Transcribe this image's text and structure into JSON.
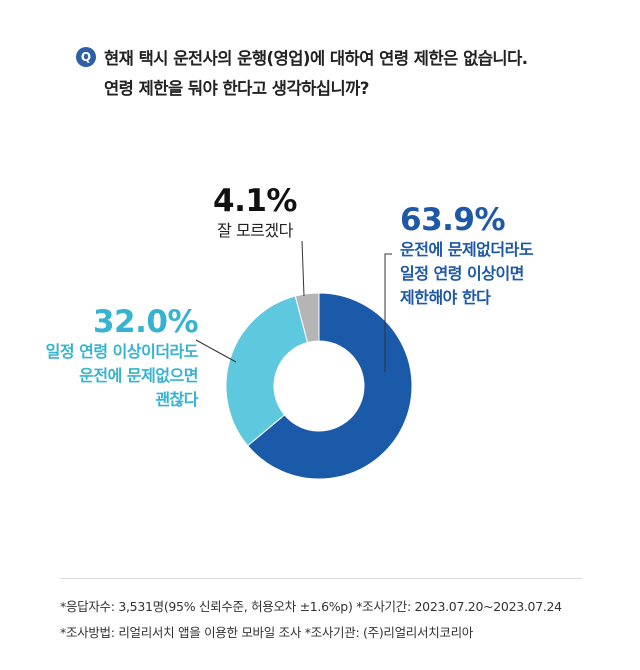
{
  "question": {
    "badge": "Q",
    "line1": "현재 택시 운전사의 운행(영업)에 대하여 연령 제한은 없습니다.",
    "line2": "연령 제한을 둬야 한다고 생각하십니까?"
  },
  "chart_data": {
    "type": "pie",
    "donut": true,
    "title": "",
    "slices": [
      {
        "pct_label": "63.9%",
        "value": 63.9,
        "label_lines": [
          "운전에 문제없더라도",
          "일정 연령 이상이면",
          "제한해야 한다"
        ],
        "color": "#1b5aa8"
      },
      {
        "pct_label": "32.0%",
        "value": 32.0,
        "label_lines": [
          "일정 연령 이상이더라도",
          "운전에 문제없으면",
          "괜찮다"
        ],
        "color": "#5ec8df"
      },
      {
        "pct_label": "4.1%",
        "value": 4.1,
        "label_lines": [
          "잘 모르겠다"
        ],
        "color": "#b5b5b5"
      }
    ]
  },
  "footnotes": {
    "line1": "*응답자수: 3,531명(95% 신뢰수준, 허용오차 ±1.6%p)  *조사기간: 2023.07.20~2023.07.24",
    "line2": "*조사방법: 리얼리서치 앱을 이용한 모바일 조사  *조사기관: (주)리얼리서치코리아"
  }
}
